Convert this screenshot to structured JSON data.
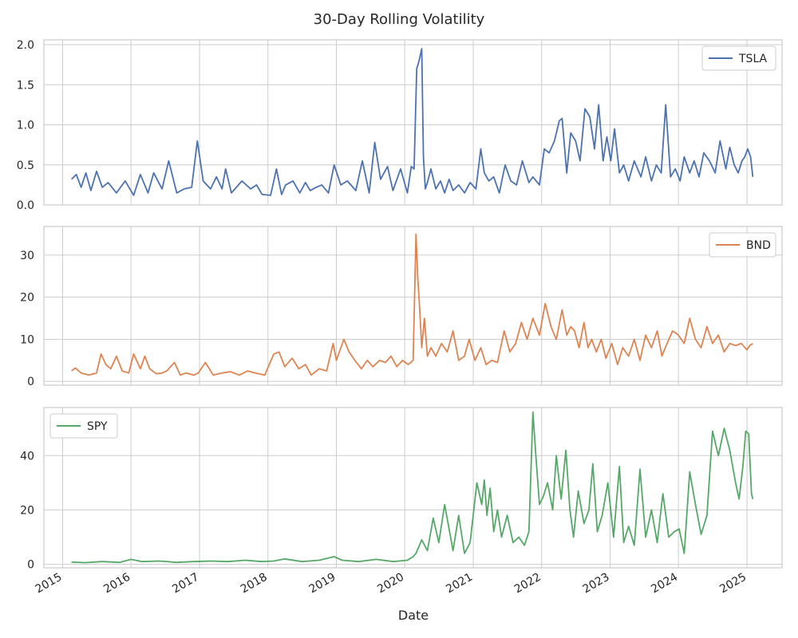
{
  "title": "30-Day Rolling Volatility",
  "xlabel": "Date",
  "x_ticks": [
    "2015",
    "2016",
    "2017",
    "2018",
    "2019",
    "2020",
    "2021",
    "2022",
    "2023",
    "2024",
    "2025"
  ],
  "chart_data": [
    {
      "type": "line",
      "xlim": [
        "2014-09-23",
        "2025-07-07"
      ],
      "ylim": [
        0.0,
        2.06
      ],
      "yticks": [
        "0.0",
        "0.5",
        "1.0",
        "1.5",
        "2.0"
      ],
      "ytick_values": [
        0,
        0.5,
        1.0,
        1.5,
        2.0
      ],
      "grid": true,
      "legend": "top-right",
      "series": [
        {
          "name": "TSLA",
          "color": "#4c72b0",
          "x": [
            "2015-02-18",
            "2015-03-15",
            "2015-04-10",
            "2015-05-05",
            "2015-06-01",
            "2015-07-01",
            "2015-08-01",
            "2015-09-01",
            "2015-10-15",
            "2015-12-01",
            "2016-01-15",
            "2016-02-20",
            "2016-04-01",
            "2016-05-01",
            "2016-06-15",
            "2016-07-20",
            "2016-09-01",
            "2016-10-10",
            "2016-11-20",
            "2016-12-20",
            "2017-01-20",
            "2017-03-01",
            "2017-04-01",
            "2017-05-01",
            "2017-05-20",
            "2017-06-20",
            "2017-08-15",
            "2017-10-01",
            "2017-11-01",
            "2017-12-01",
            "2018-01-15",
            "2018-02-15",
            "2018-03-15",
            "2018-04-05",
            "2018-05-15",
            "2018-06-20",
            "2018-07-20",
            "2018-08-15",
            "2018-09-15",
            "2018-10-15",
            "2018-11-20",
            "2018-12-20",
            "2019-01-25",
            "2019-03-01",
            "2019-04-15",
            "2019-05-20",
            "2019-06-25",
            "2019-07-25",
            "2019-08-25",
            "2019-10-01",
            "2019-10-30",
            "2019-12-10",
            "2020-01-15",
            "2020-02-05",
            "2020-02-20",
            "2020-03-05",
            "2020-03-18",
            "2020-04-01",
            "2020-04-10",
            "2020-04-20",
            "2020-05-01",
            "2020-05-20",
            "2020-06-15",
            "2020-07-10",
            "2020-08-01",
            "2020-08-25",
            "2020-09-15",
            "2020-10-15",
            "2020-11-15",
            "2020-12-15",
            "2021-01-15",
            "2021-02-10",
            "2021-03-01",
            "2021-03-25",
            "2021-04-20",
            "2021-05-20",
            "2021-06-20",
            "2021-07-20",
            "2021-08-20",
            "2021-09-20",
            "2021-10-25",
            "2021-11-15",
            "2021-12-20",
            "2022-01-15",
            "2022-02-10",
            "2022-03-10",
            "2022-04-05",
            "2022-04-20",
            "2022-05-15",
            "2022-06-05",
            "2022-07-01",
            "2022-07-25",
            "2022-08-20",
            "2022-09-15",
            "2022-10-10",
            "2022-11-01",
            "2022-11-25",
            "2022-12-15",
            "2023-01-05",
            "2023-01-25",
            "2023-02-20",
            "2023-03-15",
            "2023-04-10",
            "2023-05-10",
            "2023-06-15",
            "2023-07-10",
            "2023-08-10",
            "2023-09-05",
            "2023-10-01",
            "2023-10-25",
            "2023-11-20",
            "2023-12-15",
            "2024-01-10",
            "2024-02-01",
            "2024-03-01",
            "2024-03-25",
            "2024-04-20",
            "2024-05-15",
            "2024-06-15",
            "2024-07-15",
            "2024-08-10",
            "2024-09-10",
            "2024-10-01",
            "2024-10-25",
            "2024-11-15",
            "2024-12-05",
            "2024-12-20",
            "2025-01-05",
            "2025-01-20",
            "2025-02-01"
          ],
          "values": [
            0.32,
            0.38,
            0.22,
            0.4,
            0.18,
            0.42,
            0.22,
            0.28,
            0.15,
            0.3,
            0.12,
            0.38,
            0.15,
            0.4,
            0.2,
            0.55,
            0.15,
            0.2,
            0.22,
            0.8,
            0.3,
            0.2,
            0.35,
            0.2,
            0.45,
            0.15,
            0.3,
            0.2,
            0.25,
            0.13,
            0.12,
            0.45,
            0.13,
            0.25,
            0.3,
            0.15,
            0.28,
            0.18,
            0.22,
            0.25,
            0.15,
            0.5,
            0.25,
            0.3,
            0.18,
            0.55,
            0.15,
            0.78,
            0.32,
            0.48,
            0.18,
            0.45,
            0.15,
            0.48,
            0.45,
            1.7,
            1.8,
            1.95,
            0.6,
            0.2,
            0.28,
            0.45,
            0.2,
            0.3,
            0.15,
            0.32,
            0.18,
            0.25,
            0.15,
            0.28,
            0.2,
            0.7,
            0.4,
            0.3,
            0.35,
            0.15,
            0.5,
            0.3,
            0.25,
            0.55,
            0.28,
            0.35,
            0.25,
            0.7,
            0.65,
            0.8,
            1.05,
            1.08,
            0.4,
            0.9,
            0.8,
            0.55,
            1.2,
            1.1,
            0.7,
            1.25,
            0.55,
            0.85,
            0.55,
            0.95,
            0.4,
            0.5,
            0.3,
            0.55,
            0.35,
            0.6,
            0.3,
            0.5,
            0.4,
            1.25,
            0.35,
            0.45,
            0.3,
            0.6,
            0.4,
            0.55,
            0.35,
            0.65,
            0.55,
            0.4,
            0.8,
            0.45,
            0.72,
            0.5,
            0.4,
            0.55,
            0.6,
            0.7,
            0.6,
            0.35
          ]
        }
      ]
    },
    {
      "type": "line",
      "xlim": [
        "2014-09-23",
        "2025-07-07"
      ],
      "ylim": [
        -0.9,
        36.8
      ],
      "yticks": [
        "0",
        "10",
        "20",
        "30"
      ],
      "ytick_values": [
        0,
        10,
        20,
        30
      ],
      "grid": true,
      "legend": "top-right",
      "series": [
        {
          "name": "BND",
          "color": "#dd8452",
          "x": [
            "2015-02-18",
            "2015-03-10",
            "2015-04-10",
            "2015-05-20",
            "2015-07-01",
            "2015-07-25",
            "2015-08-20",
            "2015-09-15",
            "2015-10-15",
            "2015-11-15",
            "2015-12-20",
            "2016-01-15",
            "2016-02-20",
            "2016-03-15",
            "2016-04-10",
            "2016-05-15",
            "2016-06-15",
            "2016-07-10",
            "2016-08-20",
            "2016-09-20",
            "2016-10-20",
            "2016-12-01",
            "2016-12-25",
            "2017-02-01",
            "2017-03-15",
            "2017-05-01",
            "2017-06-15",
            "2017-08-01",
            "2017-09-15",
            "2017-10-25",
            "2017-12-15",
            "2018-02-01",
            "2018-03-01",
            "2018-04-01",
            "2018-05-10",
            "2018-06-15",
            "2018-07-20",
            "2018-08-20",
            "2018-10-01",
            "2018-11-10",
            "2018-12-15",
            "2019-01-01",
            "2019-02-10",
            "2019-03-10",
            "2019-04-10",
            "2019-05-15",
            "2019-06-15",
            "2019-07-15",
            "2019-08-20",
            "2019-09-20",
            "2019-10-20",
            "2019-11-20",
            "2019-12-20",
            "2020-01-20",
            "2020-02-15",
            "2020-03-01",
            "2020-03-10",
            "2020-03-20",
            "2020-04-01",
            "2020-04-15",
            "2020-05-01",
            "2020-05-20",
            "2020-06-15",
            "2020-07-15",
            "2020-08-15",
            "2020-09-15",
            "2020-10-15",
            "2020-11-15",
            "2020-12-10",
            "2021-01-10",
            "2021-02-10",
            "2021-03-10",
            "2021-04-10",
            "2021-05-10",
            "2021-06-15",
            "2021-07-15",
            "2021-08-15",
            "2021-09-15",
            "2021-10-15",
            "2021-11-15",
            "2021-12-20",
            "2022-01-20",
            "2022-02-20",
            "2022-03-20",
            "2022-04-20",
            "2022-05-15",
            "2022-06-05",
            "2022-06-25",
            "2022-07-20",
            "2022-08-15",
            "2022-09-05",
            "2022-09-25",
            "2022-10-20",
            "2022-11-15",
            "2022-12-10",
            "2023-01-10",
            "2023-02-10",
            "2023-03-10",
            "2023-04-10",
            "2023-05-10",
            "2023-06-10",
            "2023-07-10",
            "2023-08-10",
            "2023-09-10",
            "2023-10-05",
            "2023-11-01",
            "2023-12-01",
            "2024-01-01",
            "2024-02-01",
            "2024-03-01",
            "2024-04-01",
            "2024-05-01",
            "2024-06-01",
            "2024-07-01",
            "2024-08-01",
            "2024-09-01",
            "2024-10-01",
            "2024-11-01",
            "2024-12-01",
            "2025-01-01",
            "2025-01-15",
            "2025-02-01"
          ],
          "values": [
            2.5,
            3.2,
            2.0,
            1.5,
            2.0,
            6.5,
            4.0,
            3.0,
            6.0,
            2.5,
            2.0,
            6.5,
            3.0,
            6.0,
            3.0,
            1.8,
            2.0,
            2.5,
            4.5,
            1.5,
            2.0,
            1.5,
            2.0,
            4.5,
            1.5,
            2.0,
            2.3,
            1.5,
            2.5,
            2.0,
            1.5,
            6.5,
            7.0,
            3.5,
            5.5,
            3.0,
            4.0,
            1.5,
            3.0,
            2.5,
            9.0,
            5.0,
            10.0,
            7.0,
            5.0,
            3.0,
            5.0,
            3.5,
            5.0,
            4.5,
            6.0,
            3.5,
            5.0,
            4.0,
            5.0,
            35.0,
            25.0,
            18.0,
            8.0,
            15.0,
            6.0,
            8.0,
            6.0,
            9.0,
            7.0,
            12.0,
            5.0,
            6.0,
            10.0,
            5.0,
            8.0,
            4.0,
            5.0,
            4.5,
            12.0,
            7.0,
            9.0,
            14.0,
            10.0,
            15.0,
            11.0,
            18.5,
            13.0,
            10.0,
            17.0,
            11.0,
            13.0,
            12.0,
            8.0,
            14.0,
            8.0,
            10.0,
            7.0,
            10.0,
            5.5,
            9.0,
            4.0,
            8.0,
            6.0,
            10.0,
            5.0,
            11.0,
            8.0,
            12.0,
            6.0,
            9.0,
            12.0,
            11.0,
            9.0,
            15.0,
            10.0,
            8.0,
            13.0,
            9.0,
            11.0,
            7.0,
            9.0,
            8.5,
            9.0,
            7.5,
            8.5,
            9.0
          ]
        }
      ]
    },
    {
      "type": "line",
      "xlim": [
        "2014-09-23",
        "2025-07-07"
      ],
      "ylim": [
        -1.3,
        57.7
      ],
      "yticks": [
        "0",
        "20",
        "40"
      ],
      "ytick_values": [
        0,
        20,
        40
      ],
      "grid": true,
      "legend": "top-left",
      "series": [
        {
          "name": "SPY",
          "color": "#55a868",
          "x": [
            "2015-02-18",
            "2015-05-01",
            "2015-08-01",
            "2015-11-01",
            "2016-01-01",
            "2016-03-01",
            "2016-06-01",
            "2016-09-01",
            "2016-12-01",
            "2017-03-01",
            "2017-06-01",
            "2017-09-01",
            "2017-12-01",
            "2018-02-01",
            "2018-04-01",
            "2018-07-01",
            "2018-10-01",
            "2018-12-20",
            "2019-02-01",
            "2019-05-01",
            "2019-08-01",
            "2019-11-01",
            "2020-01-15",
            "2020-02-15",
            "2020-03-01",
            "2020-04-01",
            "2020-05-01",
            "2020-06-01",
            "2020-07-01",
            "2020-08-01",
            "2020-09-15",
            "2020-10-15",
            "2020-11-15",
            "2020-12-15",
            "2021-01-20",
            "2021-02-15",
            "2021-03-01",
            "2021-03-15",
            "2021-04-01",
            "2021-04-20",
            "2021-05-10",
            "2021-06-01",
            "2021-07-01",
            "2021-08-01",
            "2021-09-01",
            "2021-10-01",
            "2021-10-25",
            "2021-11-15",
            "2021-12-01",
            "2021-12-20",
            "2022-01-10",
            "2022-02-01",
            "2022-03-01",
            "2022-03-20",
            "2022-04-15",
            "2022-05-10",
            "2022-06-01",
            "2022-06-20",
            "2022-07-15",
            "2022-08-15",
            "2022-09-10",
            "2022-10-01",
            "2022-10-25",
            "2022-11-20",
            "2022-12-20",
            "2023-01-20",
            "2023-02-20",
            "2023-03-15",
            "2023-04-10",
            "2023-05-10",
            "2023-06-10",
            "2023-07-10",
            "2023-08-10",
            "2023-09-10",
            "2023-10-10",
            "2023-11-10",
            "2023-12-10",
            "2024-01-05",
            "2024-02-01",
            "2024-03-01",
            "2024-04-01",
            "2024-05-01",
            "2024-06-01",
            "2024-07-01",
            "2024-08-01",
            "2024-09-01",
            "2024-10-01",
            "2024-11-01",
            "2024-11-20",
            "2024-12-10",
            "2024-12-25",
            "2025-01-10",
            "2025-01-25",
            "2025-02-01"
          ],
          "values": [
            0.8,
            0.6,
            1.0,
            0.7,
            1.8,
            1.0,
            1.2,
            0.7,
            1.0,
            1.2,
            1.0,
            1.5,
            1.0,
            1.2,
            2.0,
            1.0,
            1.5,
            2.8,
            1.5,
            1.0,
            1.8,
            1.0,
            1.5,
            2.8,
            4.0,
            9.0,
            5.0,
            17.0,
            8.0,
            22.0,
            5.0,
            18.0,
            4.0,
            8.0,
            30.0,
            22.0,
            31.0,
            18.0,
            28.0,
            12.0,
            20.0,
            10.0,
            18.0,
            8.0,
            10.0,
            7.0,
            12.0,
            56.0,
            40.0,
            22.0,
            25.0,
            30.0,
            20.0,
            40.0,
            24.0,
            42.0,
            20.0,
            10.0,
            27.0,
            15.0,
            20.0,
            37.0,
            12.0,
            18.0,
            30.0,
            10.0,
            36.0,
            8.0,
            14.0,
            7.0,
            35.0,
            10.0,
            20.0,
            8.0,
            26.0,
            10.0,
            12.0,
            13.0,
            4.0,
            34.0,
            22.0,
            11.0,
            18.0,
            49.0,
            40.0,
            50.0,
            42.0,
            30.0,
            24.0,
            36.0,
            49.0,
            48.0,
            26.0,
            24.0
          ]
        }
      ]
    }
  ]
}
